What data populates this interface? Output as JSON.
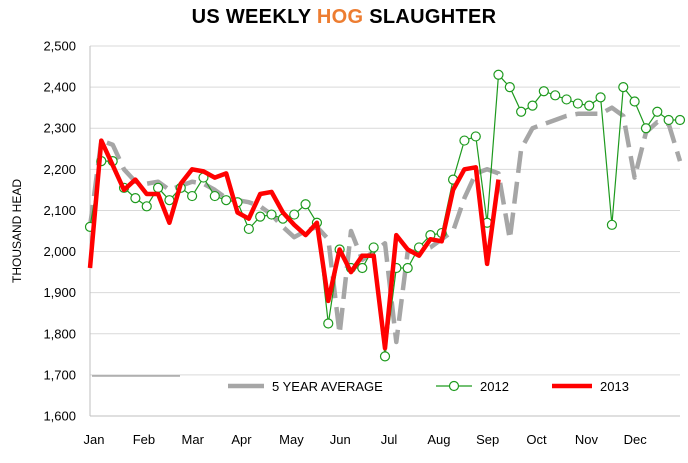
{
  "chart_data": {
    "type": "line",
    "title": {
      "prefix": "US WEEKLY ",
      "accent": "HOG",
      "suffix": " SLAUGHTER"
    },
    "accent_color": "#ed7d31",
    "ylabel": "THOUSAND HEAD",
    "xlabel": "",
    "ylim": [
      1600,
      2500
    ],
    "yticks": [
      "1,600",
      "1,700",
      "1,800",
      "1,900",
      "2,000",
      "2,100",
      "2,200",
      "2,300",
      "2,400",
      "2,500"
    ],
    "ytick_values": [
      1600,
      1700,
      1800,
      1900,
      2000,
      2100,
      2200,
      2300,
      2400,
      2500
    ],
    "xlim": [
      1,
      53
    ],
    "x_month_labels": [
      "Jan",
      "Feb",
      "Mar",
      "Apr",
      "May",
      "Jun",
      "Jul",
      "Aug",
      "Sep",
      "Oct",
      "Nov",
      "Dec"
    ],
    "x_month_weeks": [
      1,
      5.4,
      9.7,
      14,
      18.4,
      22.7,
      27,
      31.4,
      35.7,
      40,
      44.4,
      48.7
    ],
    "grid": "horizontal",
    "legend_position": "bottom",
    "series": [
      {
        "name": "5 YEAR AVERAGE",
        "color": "#a6a6a6",
        "style": "dashed",
        "x": [
          1,
          2,
          3,
          4,
          5,
          6,
          7,
          8,
          9,
          10,
          11,
          12,
          13,
          14,
          15,
          16,
          17,
          18,
          19,
          20,
          21,
          22,
          23,
          24,
          25,
          26,
          27,
          28,
          29,
          30,
          31,
          32,
          33,
          34,
          35,
          36,
          37,
          38,
          39,
          40,
          41,
          42,
          43,
          44,
          45,
          46,
          47,
          48,
          49,
          50,
          51,
          52,
          53
        ],
        "values": [
          2060,
          2270,
          2260,
          2200,
          2170,
          2165,
          2170,
          2150,
          2160,
          2170,
          2165,
          2150,
          2130,
          2125,
          2120,
          2110,
          2090,
          2060,
          2035,
          2050,
          2060,
          2030,
          1800,
          2050,
          1980,
          2000,
          2020,
          1780,
          2000,
          2000,
          2010,
          2030,
          2050,
          2130,
          2190,
          2200,
          2190,
          2030,
          2250,
          2300,
          2310,
          2320,
          2330,
          2335,
          2335,
          2335,
          2350,
          2330,
          2180,
          2290,
          2315,
          2310,
          2220
        ]
      },
      {
        "name": "2012",
        "color": "#1e9a1e",
        "style": "markers",
        "x": [
          1,
          2,
          3,
          4,
          5,
          6,
          7,
          8,
          9,
          10,
          11,
          12,
          13,
          14,
          15,
          16,
          17,
          18,
          19,
          20,
          21,
          22,
          23,
          24,
          25,
          26,
          27,
          28,
          29,
          30,
          31,
          32,
          33,
          34,
          35,
          36,
          37,
          38,
          39,
          40,
          41,
          42,
          43,
          44,
          45,
          46,
          47,
          48,
          49,
          50,
          51,
          52,
          53
        ],
        "values": [
          2060,
          2220,
          2220,
          2155,
          2130,
          2110,
          2155,
          2125,
          2155,
          2135,
          2180,
          2135,
          2125,
          2120,
          2055,
          2085,
          2090,
          2080,
          2090,
          2115,
          2070,
          1825,
          2005,
          1960,
          1960,
          2010,
          1745,
          1960,
          1960,
          2010,
          2040,
          2045,
          2175,
          2270,
          2280,
          2070,
          2430,
          2400,
          2340,
          2355,
          2390,
          2380,
          2370,
          2360,
          2355,
          2375,
          2065,
          2400,
          2365,
          2300,
          2340,
          2320,
          2320
        ]
      },
      {
        "name": "2013",
        "color": "#ff0000",
        "style": "solid",
        "x": [
          1,
          2,
          3,
          4,
          5,
          6,
          7,
          8,
          9,
          10,
          11,
          12,
          13,
          14,
          15,
          16,
          17,
          18,
          19,
          20,
          21,
          22,
          23,
          24,
          25,
          26,
          27,
          28,
          29,
          30,
          31,
          32,
          33,
          34,
          35,
          36,
          37
        ],
        "values": [
          1960,
          2270,
          2210,
          2150,
          2175,
          2140,
          2140,
          2070,
          2165,
          2200,
          2195,
          2180,
          2190,
          2095,
          2080,
          2140,
          2145,
          2095,
          2065,
          2040,
          2070,
          1880,
          2005,
          1950,
          1990,
          1990,
          1765,
          2040,
          2005,
          1990,
          2030,
          2025,
          2150,
          2200,
          2205,
          1970,
          2175
        ]
      }
    ],
    "legend_visible": true
  }
}
